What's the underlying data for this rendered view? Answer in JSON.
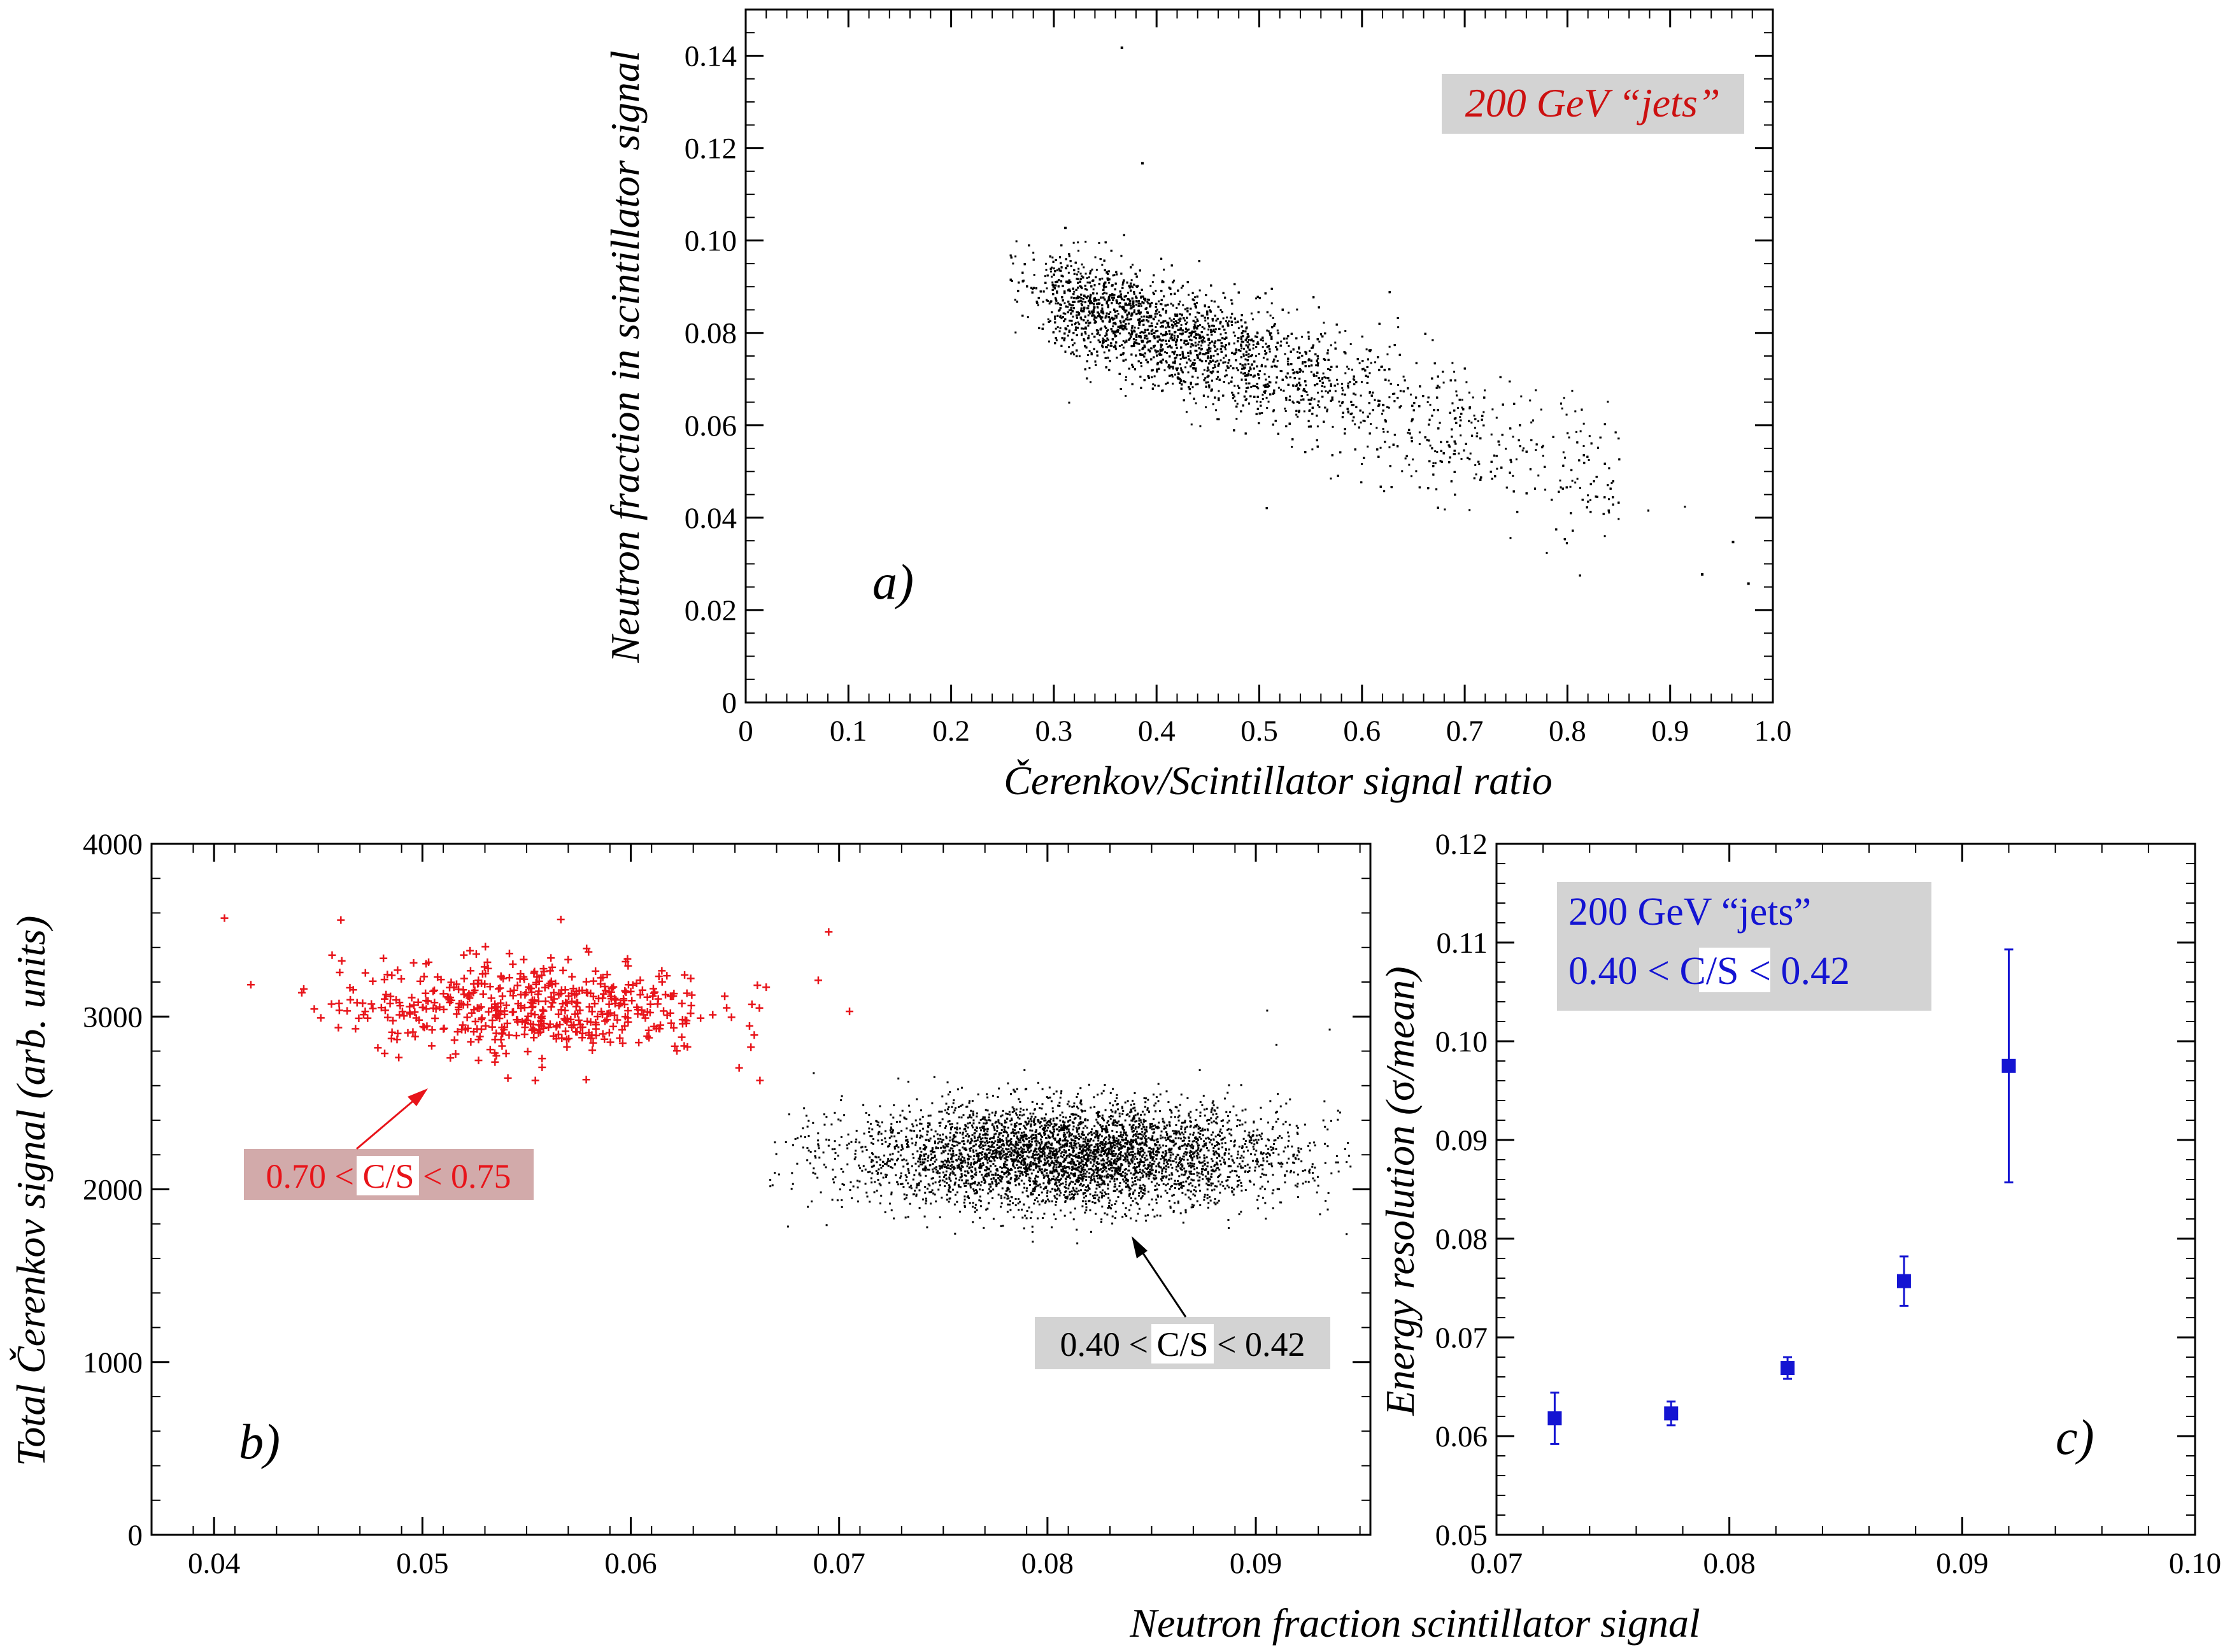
{
  "figure": {
    "caption_note": "",
    "colors": {
      "black": "#000000",
      "red": "#e8141a",
      "blue": "#1414d2",
      "annotation_bg_gray": "#d3d3d3",
      "annotation_bg_red": "#d2aaaa"
    }
  },
  "chart_data": [
    {
      "panel": "a",
      "panel_label": "a)",
      "type": "scatter",
      "title": "",
      "xlabel": "Čerenkov/Scintillator signal ratio",
      "ylabel": "Neutron fraction in scintillator signal",
      "xlim": [
        0,
        1.0
      ],
      "ylim": [
        0,
        0.15
      ],
      "xticks": [
        "0",
        "0.1",
        "0.2",
        "0.3",
        "0.4",
        "0.5",
        "0.6",
        "0.7",
        "0.8",
        "0.9",
        "1.0"
      ],
      "yticks": [
        "0",
        "0.02",
        "0.04",
        "0.06",
        "0.08",
        "0.10",
        "0.12",
        "0.14"
      ],
      "grid": false,
      "annotation": {
        "text": "200 GeV “jets”",
        "color": "#cc1111",
        "background": "#d3d3d3",
        "placement": "top-right"
      },
      "series": [
        {
          "marker": "dot",
          "color": "#000000",
          "description_distribution": {
            "center": [
              0.42,
              0.079
            ],
            "trend_slope": -0.072,
            "x_range": [
              0.25,
              0.98
            ],
            "count": 24000
          },
          "outliers": [
            [
              0.365,
              0.142
            ],
            [
              0.385,
              0.117
            ],
            [
              0.31,
              0.103
            ],
            [
              0.975,
              0.026
            ],
            [
              0.93,
              0.028
            ],
            [
              0.96,
              0.035
            ]
          ]
        }
      ]
    },
    {
      "panel": "b",
      "panel_label": "b)",
      "type": "scatter",
      "title": "",
      "xlabel": "Neutron fraction scintillator signal",
      "ylabel": "Total Čerenkov signal (arb. units)",
      "xlim": [
        0.037,
        0.0955
      ],
      "ylim": [
        0,
        4000
      ],
      "xticks": [
        "0.04",
        "0.05",
        "0.06",
        "0.07",
        "0.08",
        "0.09"
      ],
      "yticks": [
        "0",
        "1000",
        "2000",
        "3000",
        "4000"
      ],
      "grid": false,
      "series": [
        {
          "label": "0.70 < C/S < 0.75",
          "marker": "plus",
          "color": "#e8141a",
          "description_distribution": {
            "center": [
              0.055,
              3060
            ],
            "x_range": [
              0.04,
              0.0705
            ],
            "count": 500
          },
          "outliers": [
            [
              0.0405,
              3570
            ],
            [
              0.0695,
              3490
            ],
            [
              0.0665,
              3170
            ],
            [
              0.069,
              3210
            ],
            [
              0.0705,
              3030
            ],
            [
              0.0662,
              2630
            ]
          ]
        },
        {
          "label": "0.40 < C/S < 0.42",
          "marker": "dot",
          "color": "#000000",
          "description_distribution": {
            "center": [
              0.081,
              2200
            ],
            "x_range": [
              0.0665,
              0.094
            ],
            "count": 4500
          },
          "outliers": [
            [
              0.0905,
              3040
            ],
            [
              0.0935,
              2930
            ],
            [
              0.0675,
              1790
            ],
            [
              0.094,
              2450
            ]
          ]
        }
      ],
      "annotations": [
        {
          "prefix": "0.70 < ",
          "boxed": "C/S",
          "suffix": " < 0.75",
          "color": "#e8141a",
          "background": "#d2aaaa",
          "arrow_to": [
            0.051,
            2580
          ]
        },
        {
          "prefix": "0.40 < ",
          "boxed": "C/S",
          "suffix": " < 0.42",
          "color": "#000000",
          "background": "#d3d3d3",
          "arrow_to": [
            0.0845,
            1700
          ]
        }
      ]
    },
    {
      "panel": "c",
      "panel_label": "c)",
      "type": "scatter",
      "title": "",
      "xlabel": "Neutron fraction scintillator signal",
      "ylabel_main": "Energy resolution (",
      "ylabel_sigma": "σ",
      "ylabel_tail": "/mean)",
      "xlim": [
        0.07,
        0.1
      ],
      "ylim": [
        0.05,
        0.12
      ],
      "xticks": [
        "0.07",
        "0.08",
        "0.09",
        "0.10"
      ],
      "yticks": [
        "0.05",
        "0.06",
        "0.07",
        "0.08",
        "0.09",
        "0.10",
        "0.11",
        "0.12"
      ],
      "grid": false,
      "annotation": {
        "line1": "200 GeV “jets”",
        "line2_prefix": "0.40 < ",
        "line2_boxed": "C/S",
        "line2_suffix": " < 0.42",
        "color": "#1414d2",
        "background": "#d3d3d3",
        "placement": "top-left"
      },
      "series": [
        {
          "marker": "square",
          "color": "#1414d2",
          "x": [
            0.0725,
            0.0775,
            0.0825,
            0.0875,
            0.092
          ],
          "y": [
            0.0618,
            0.0623,
            0.0669,
            0.0757,
            0.0975
          ],
          "yerr": [
            0.0026,
            0.0012,
            0.0011,
            0.0025,
            0.0118
          ]
        }
      ]
    }
  ],
  "shared_xlabel": "Neutron fraction scintillator signal"
}
